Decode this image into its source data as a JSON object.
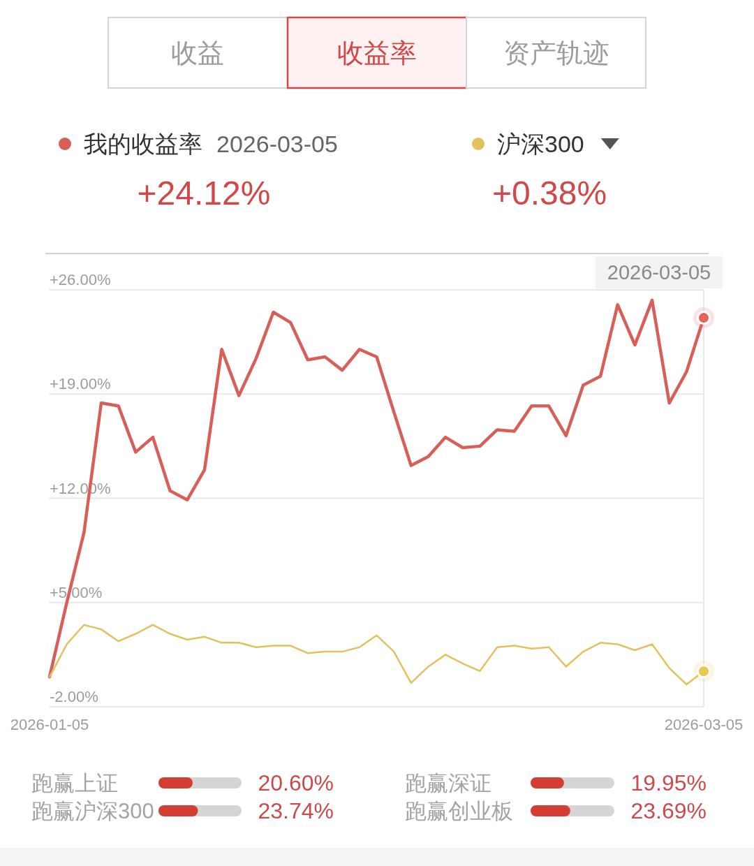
{
  "chart_data": [
    {
      "type": "line",
      "title": "收益率",
      "categories": [
        "2026-01-05",
        null,
        null,
        null,
        null,
        null,
        null,
        null,
        null,
        null,
        null,
        null,
        null,
        null,
        null,
        null,
        null,
        null,
        null,
        null,
        null,
        null,
        null,
        null,
        null,
        null,
        null,
        null,
        null,
        null,
        null,
        null,
        null,
        null,
        null,
        null,
        null,
        null,
        "2026-03-05"
      ],
      "series": [
        {
          "name": "我的收益率",
          "color": "#d85f58",
          "values": [
            0,
            5.0,
            9.7,
            18.4,
            18.2,
            15.1,
            16.1,
            12.5,
            11.9,
            13.9,
            22.0,
            18.9,
            21.4,
            24.5,
            23.8,
            21.3,
            21.5,
            20.6,
            22.0,
            21.5,
            17.8,
            14.2,
            14.8,
            16.1,
            15.4,
            15.5,
            16.6,
            16.5,
            18.2,
            18.2,
            16.2,
            19.6,
            20.2,
            25.0,
            22.3,
            25.3,
            18.4,
            20.5,
            24.12
          ]
        },
        {
          "name": "沪深300",
          "color": "#e2c25c",
          "values": [
            0,
            2.2,
            3.5,
            3.2,
            2.4,
            2.9,
            3.5,
            2.9,
            2.5,
            2.7,
            2.3,
            2.3,
            2.0,
            2.1,
            2.1,
            1.6,
            1.7,
            1.7,
            2.0,
            2.8,
            1.7,
            -0.4,
            0.7,
            1.5,
            0.9,
            0.4,
            2.0,
            2.1,
            1.9,
            2.0,
            0.7,
            1.7,
            2.3,
            2.2,
            1.8,
            2.2,
            0.6,
            -0.5,
            0.38
          ]
        },
        {
          "type": "scatter",
          "color": "#e8625c",
          "marker": "circle",
          "values": [
            null,
            null,
            null,
            null,
            null,
            null,
            null,
            null,
            null,
            null,
            null,
            null,
            null,
            null,
            null,
            null,
            null,
            null,
            null,
            null,
            null,
            null,
            null,
            null,
            null,
            null,
            null,
            null,
            null,
            null,
            null,
            null,
            null,
            null,
            null,
            null,
            null,
            null,
            24.12
          ]
        },
        {
          "type": "scatter",
          "color": "#ecc74e",
          "marker": "circle",
          "values": [
            null,
            null,
            null,
            null,
            null,
            null,
            null,
            null,
            null,
            null,
            null,
            null,
            null,
            null,
            null,
            null,
            null,
            null,
            null,
            null,
            null,
            null,
            null,
            null,
            null,
            null,
            null,
            null,
            null,
            null,
            null,
            null,
            null,
            null,
            null,
            null,
            null,
            null,
            0.38
          ]
        }
      ],
      "ylim": [
        -2,
        26
      ],
      "yticks": [
        {
          "value": -2,
          "label": "-2.00%"
        },
        {
          "value": 5,
          "label": "+5.00%"
        },
        {
          "value": 12,
          "label": "+12.00%"
        },
        {
          "value": 19,
          "label": "+19.00%"
        },
        {
          "value": 26,
          "label": "+26.00%"
        }
      ],
      "grid": "y",
      "legend": "top",
      "annotations": [
        "收益",
        "资产轨迹",
        "2026-03-05",
        "+24.12%",
        "+0.38%",
        "2026-03-05"
      ]
    },
    {
      "type": "bar",
      "orientation": "horizontal",
      "categories": [
        "跑赢上证",
        "跑赢沪深300"
      ],
      "values": [
        20.6,
        23.74
      ],
      "value_labels": [
        "20.60%",
        "23.74%"
      ],
      "color": "#d43d33",
      "xlim": [
        0,
        50
      ],
      "tick_labels": "y"
    },
    {
      "type": "bar",
      "orientation": "horizontal",
      "categories": [
        "跑赢深证",
        "跑赢创业板"
      ],
      "values": [
        19.95,
        23.69
      ],
      "value_labels": [
        "19.95%",
        "23.69%"
      ],
      "color": "#d43d33",
      "xlim": [
        0,
        50
      ],
      "tick_labels": "y"
    }
  ]
}
